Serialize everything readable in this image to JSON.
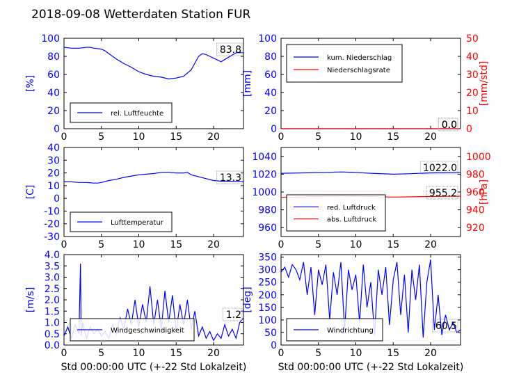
{
  "figure_title": "2018-09-08 Wetterdaten Station FUR",
  "colors": {
    "left_axis": "#0000ff",
    "right_axis": "#ff0000",
    "series_primary": "#0000ff",
    "series_secondary": "#ff0000",
    "series_light": "#8888ff"
  },
  "chart_data": [
    {
      "id": "humidity",
      "type": "line",
      "ylabel": "[%]",
      "xlabel": "",
      "xlim": [
        0,
        24
      ],
      "ylim": [
        0,
        100
      ],
      "xticks": [
        0,
        5,
        10,
        15,
        20
      ],
      "yticks": [
        0,
        20,
        40,
        60,
        80,
        100
      ],
      "legend": "bottom-left",
      "last_value": "83.8",
      "series": [
        {
          "name": "rel. Luftfeuchte",
          "color": "#0000ff",
          "x": [
            0,
            1,
            2,
            3,
            3.5,
            4,
            5,
            5.5,
            6,
            7,
            8,
            9,
            10,
            11,
            12,
            13,
            14,
            15,
            16,
            17,
            18,
            18.5,
            19,
            19.5,
            20,
            21,
            22,
            23,
            24
          ],
          "values": [
            90,
            89,
            89,
            90,
            90,
            89,
            88,
            86,
            83,
            77,
            72,
            68,
            63,
            60,
            58,
            57,
            55,
            56,
            58,
            65,
            80,
            83,
            82,
            80,
            78,
            74,
            79,
            84,
            84
          ]
        }
      ]
    },
    {
      "id": "rain",
      "type": "line",
      "ylabel": "[mm]",
      "ylabel_right": "[mm/std]",
      "xlabel": "",
      "xlim": [
        0,
        24
      ],
      "ylim": [
        0,
        100
      ],
      "ylim_right": [
        0,
        50
      ],
      "xticks": [
        0,
        5,
        10,
        15,
        20
      ],
      "yticks": [
        0,
        20,
        40,
        60,
        80,
        100
      ],
      "yticks_right": [
        0,
        10,
        20,
        30,
        40,
        50
      ],
      "legend": "top-left",
      "last_values": [
        "0.0",
        "0.0"
      ],
      "series": [
        {
          "name": "kum. Niederschlag",
          "color": "#0000ff",
          "axis": "left",
          "x": [
            0,
            24
          ],
          "values": [
            0,
            0
          ]
        },
        {
          "name": "Niederschlagsrate",
          "color": "#ff0000",
          "axis": "right",
          "x": [
            0,
            24
          ],
          "values": [
            0,
            0
          ]
        }
      ]
    },
    {
      "id": "temperature",
      "type": "line",
      "ylabel": "[C]",
      "xlabel": "",
      "xlim": [
        0,
        24
      ],
      "ylim": [
        -30,
        40
      ],
      "xticks": [
        0,
        5,
        10,
        15,
        20
      ],
      "yticks": [
        -30,
        -20,
        -10,
        0,
        10,
        20,
        30,
        40
      ],
      "legend": "bottom-left",
      "last_value": "13.3",
      "series": [
        {
          "name": "Lufttemperatur",
          "color": "#0000ff",
          "x": [
            0,
            1,
            2,
            3,
            4,
            4.5,
            5,
            6,
            7,
            8,
            9,
            10,
            11,
            12,
            13,
            14,
            15,
            16,
            16.5,
            17,
            18,
            19,
            20,
            21,
            22,
            23,
            24
          ],
          "values": [
            13,
            13,
            12.5,
            12.5,
            12,
            12,
            12.5,
            14,
            15,
            16.5,
            17.5,
            18.5,
            19,
            19.5,
            20.5,
            20.5,
            20,
            20,
            20.5,
            18.5,
            17,
            15.5,
            14,
            13.5,
            13.5,
            13.3,
            13.3
          ]
        }
      ]
    },
    {
      "id": "pressure",
      "type": "line",
      "ylabel": "",
      "ylabel_right": "[hPa]",
      "xlabel": "",
      "xlim": [
        0,
        24
      ],
      "ylim": [
        950,
        1050
      ],
      "ylim_right": [
        910,
        1010
      ],
      "xticks": [
        0,
        5,
        10,
        15,
        20
      ],
      "yticks": [
        960,
        980,
        1000,
        1020,
        1040
      ],
      "yticks_right": [
        920,
        940,
        960,
        980,
        1000
      ],
      "legend": "bottom-left",
      "last_values": [
        "1022.0",
        "955.2"
      ],
      "series": [
        {
          "name": "red. Luftdruck",
          "color": "#0000ff",
          "axis": "left",
          "x": [
            0,
            3,
            6,
            8,
            10,
            12,
            15,
            17,
            20,
            24
          ],
          "values": [
            1021,
            1021.5,
            1022,
            1022.5,
            1022,
            1021,
            1020,
            1020.5,
            1021.5,
            1022
          ]
        },
        {
          "name": "abs. Luftdruck",
          "color": "#ff0000",
          "axis": "right",
          "x": [
            0,
            3,
            6,
            8,
            10,
            12,
            15,
            17,
            20,
            24
          ],
          "values": [
            954,
            954.5,
            955,
            955.5,
            955.2,
            954.8,
            954.3,
            954.5,
            955,
            955.2
          ]
        }
      ]
    },
    {
      "id": "wind_speed",
      "type": "line",
      "ylabel": "[m/s]",
      "xlabel": "Std 00:00:00 UTC (+-22 Std Lokalzeit)",
      "xlim": [
        0,
        24
      ],
      "ylim": [
        0,
        4.0
      ],
      "xticks": [
        0,
        5,
        10,
        15,
        20
      ],
      "yticks": [
        0.0,
        0.5,
        1.0,
        1.5,
        2.0,
        2.5,
        3.0,
        3.5,
        4.0
      ],
      "legend": "bottom-center",
      "last_value": "1.2",
      "series": [
        {
          "name": "Windgeschwindigkeit",
          "color": "#0000ff",
          "x": [
            0,
            0.5,
            1,
            1.5,
            2,
            2.2,
            2.3,
            2.5,
            3,
            3.5,
            4,
            4.5,
            5,
            5.5,
            6,
            6.5,
            7,
            7.5,
            8,
            8.5,
            9,
            9.5,
            10,
            10.5,
            11,
            11.5,
            12,
            12.5,
            13,
            13.5,
            14,
            14.5,
            15,
            15.5,
            16,
            16.5,
            17,
            17.5,
            18,
            18.5,
            19,
            19.5,
            20,
            20.5,
            21,
            21.5,
            22,
            22.5,
            23,
            23.5,
            24
          ],
          "values": [
            0.4,
            0.8,
            0.3,
            0.9,
            0.5,
            3.6,
            0.4,
            1.0,
            0.3,
            0.8,
            0.5,
            0.7,
            0.4,
            0.6,
            0.3,
            0.9,
            0.5,
            1.2,
            0.7,
            1.6,
            0.9,
            2.0,
            0.8,
            1.8,
            1.0,
            2.6,
            0.9,
            2.0,
            0.7,
            2.4,
            1.0,
            2.2,
            0.6,
            1.8,
            0.9,
            2.0,
            0.7,
            1.5,
            0.4,
            0.8,
            0.3,
            0.6,
            0.2,
            0.5,
            0.3,
            0.9,
            0.4,
            0.7,
            0.3,
            1.0,
            1.2
          ]
        }
      ]
    },
    {
      "id": "wind_direction",
      "type": "line",
      "ylabel": "[deg]",
      "xlabel": "Std 00:00:00 UTC (+-22 Std Lokalzeit)",
      "xlim": [
        0,
        24
      ],
      "ylim": [
        0,
        360
      ],
      "xticks": [
        0,
        5,
        10,
        15,
        20
      ],
      "yticks": [
        0,
        50,
        100,
        150,
        200,
        250,
        300,
        350
      ],
      "legend": "bottom-left",
      "last_value": "60.5",
      "series": [
        {
          "name": "Windrichtung",
          "color": "#0000ff",
          "x": [
            0,
            0.5,
            1,
            1.5,
            2,
            2.5,
            3,
            3.5,
            4,
            4.5,
            5,
            5.5,
            6,
            6.5,
            7,
            7.5,
            8,
            8.5,
            9,
            9.5,
            10,
            10.5,
            11,
            11.5,
            12,
            12.5,
            13,
            13.5,
            14,
            14.5,
            15,
            15.5,
            16,
            16.5,
            17,
            17.5,
            18,
            18.5,
            19,
            19.5,
            20,
            20.5,
            21,
            21.5,
            22,
            22.5,
            23,
            23.5,
            24
          ],
          "values": [
            290,
            310,
            270,
            320,
            300,
            260,
            330,
            200,
            310,
            120,
            300,
            240,
            320,
            100,
            290,
            200,
            330,
            60,
            300,
            220,
            280,
            90,
            320,
            150,
            250,
            40,
            300,
            200,
            310,
            80,
            260,
            330,
            120,
            280,
            50,
            300,
            180,
            320,
            30,
            250,
            340,
            60,
            200,
            40,
            120,
            60,
            90,
            50,
            60.5
          ]
        }
      ]
    }
  ]
}
